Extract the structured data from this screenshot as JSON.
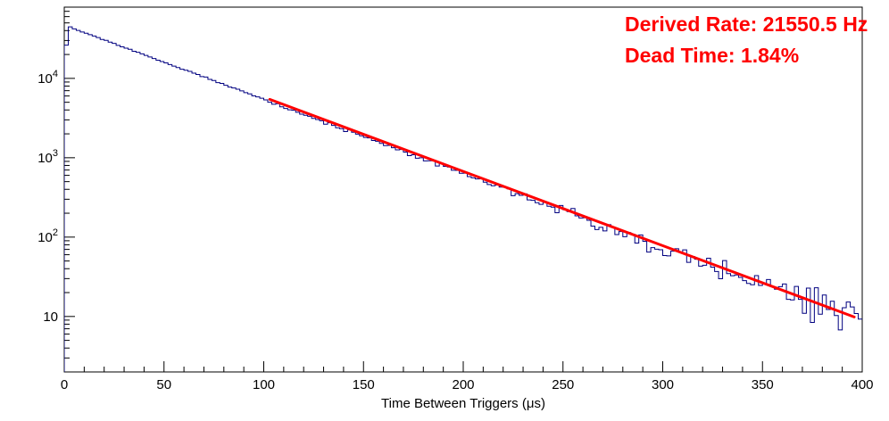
{
  "annotations": {
    "derived_rate": "Derived Rate: 21550.5 Hz",
    "dead_time": "Dead Time: 1.84%",
    "color": "#ff0000"
  },
  "chart_data": {
    "type": "histogram",
    "title": "",
    "xlabel": "Time Between Triggers (μs)",
    "ylabel": "",
    "x_range": [
      0,
      400
    ],
    "x_ticks": [
      0,
      50,
      100,
      150,
      200,
      250,
      300,
      350,
      400
    ],
    "x_minor_step": 10,
    "y_scale": "log",
    "y_range": [
      2,
      79000
    ],
    "y_ticks": [
      {
        "value": 10,
        "base": "10",
        "exp": ""
      },
      {
        "value": 100,
        "base": "10",
        "exp": "2"
      },
      {
        "value": 1000,
        "base": "10",
        "exp": "3"
      },
      {
        "value": 10000,
        "base": "10",
        "exp": "4"
      }
    ],
    "grid": false,
    "legend": "none",
    "bin_width_us": 2,
    "histogram_color": "#000080",
    "fit_color": "#ff0000",
    "axis_color": "#000000",
    "derived_rate_hz": 21550.5,
    "dead_time_pct": 1.84,
    "model": {
      "amplitude": 47000,
      "decay_per_us": 0.02155,
      "first_bin_factor": 0.57,
      "noise": "poisson"
    },
    "fit": {
      "amplitude": 50100,
      "decay_per_us": 0.02155,
      "x_start": 103,
      "x_end": 396
    },
    "noise_seed": 987654321,
    "sample_points": {
      "x": [
        0,
        25,
        50,
        75,
        100,
        125,
        150,
        175,
        200,
        225,
        250,
        275,
        300,
        325,
        350,
        375,
        400
      ],
      "counts": [
        26000,
        27400,
        16000,
        9350,
        5460,
        3180,
        1860,
        1085,
        633,
        370,
        216,
        126,
        73.5,
        42.9,
        25.0,
        14.6,
        8.5
      ]
    }
  }
}
